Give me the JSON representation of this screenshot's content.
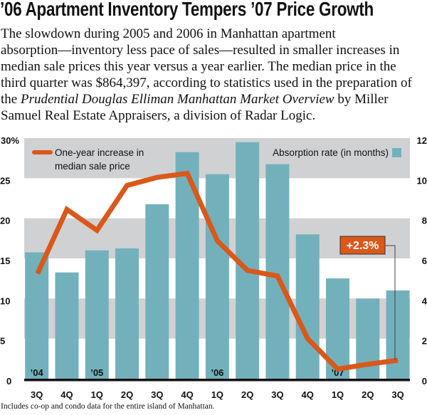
{
  "title": "’06 Apartment Inventory Tempers ’07 Price Growth",
  "body": {
    "lines": [
      "The slowdown during 2005 and 2006 in Manhattan apartment",
      "absorption—inventory less pace of sales—resulted in smaller increases in",
      "median sale prices this year versus a year earlier. The median price in the",
      "third quarter was $864,397, according to statistics used in the preparation of"
    ],
    "line5_prefix": "the ",
    "line5_italic": "Prudential Douglas Elliman Manhattan Market Overview",
    "line5_suffix": " by Miller",
    "line6": "Samuel Real Estate Appraisers, a division of Radar Logic."
  },
  "footnote": "Includes co-op and condo data for the entire island of Manhattan.",
  "chart_data": {
    "type": "bar+line",
    "categories": [
      "3Q",
      "4Q",
      "1Q",
      "2Q",
      "3Q",
      "4Q",
      "1Q",
      "2Q",
      "3Q",
      "4Q",
      "1Q",
      "2Q",
      "3Q"
    ],
    "year_labels": [
      {
        "index": 0,
        "label": "’04"
      },
      {
        "index": 2,
        "label": "’05"
      },
      {
        "index": 6,
        "label": "’06"
      },
      {
        "index": 10,
        "label": "’07"
      }
    ],
    "left_axis": {
      "ylim": [
        0,
        30
      ],
      "ticks": [
        "0",
        "5",
        "10",
        "15",
        "20",
        "25",
        "30%"
      ]
    },
    "right_axis": {
      "ylim": [
        0,
        12
      ],
      "ticks": [
        "0",
        "2",
        "4",
        "6",
        "8",
        "10",
        "12"
      ]
    },
    "series": [
      {
        "name": "Absorption rate (in months)",
        "type": "bar",
        "axis": "right",
        "color": "#72b1bc",
        "values": [
          6.3,
          5.3,
          6.4,
          6.5,
          8.7,
          11.3,
          10.2,
          11.8,
          10.7,
          7.2,
          5.0,
          4.0,
          4.4
        ]
      },
      {
        "name": "One-year increase in median sale price",
        "legend_lines": [
          "One-year increase in",
          "median sale price"
        ],
        "type": "line",
        "axis": "left",
        "color": "#d9581a",
        "values": [
          13.1,
          21.1,
          18.5,
          24.1,
          25.1,
          25.6,
          17.2,
          13.5,
          12.8,
          5.0,
          1.2,
          1.8,
          2.3
        ]
      }
    ],
    "annotation": {
      "label": "+2.3%",
      "index": 12
    },
    "band_color": "#d0d1d3",
    "grid_bands": [
      [
        5,
        10
      ],
      [
        15,
        20
      ],
      [
        25,
        30
      ]
    ]
  }
}
